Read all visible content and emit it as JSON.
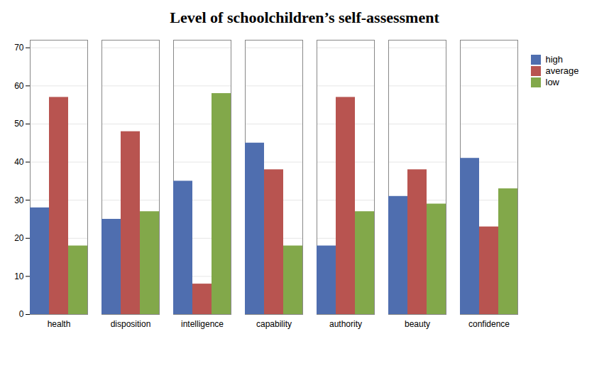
{
  "chart_data": {
    "type": "bar",
    "title": "Level of schoolchildren’s self-assessment",
    "categories": [
      "health",
      "disposition",
      "intelligence",
      "capability",
      "authority",
      "beauty",
      "confidence"
    ],
    "series": [
      {
        "name": "high",
        "color": "#4F6EAF",
        "values": [
          28,
          25,
          35,
          45,
          18,
          31,
          41
        ]
      },
      {
        "name": "average",
        "color": "#B85450",
        "values": [
          57,
          48,
          8,
          38,
          57,
          38,
          23
        ]
      },
      {
        "name": "low",
        "color": "#82A84A",
        "values": [
          18,
          27,
          58,
          18,
          27,
          29,
          33
        ]
      }
    ],
    "ylim": [
      0,
      72
    ],
    "yticks": [
      0,
      10,
      20,
      30,
      40,
      50,
      60,
      70
    ],
    "grid": true,
    "legend": "right"
  }
}
